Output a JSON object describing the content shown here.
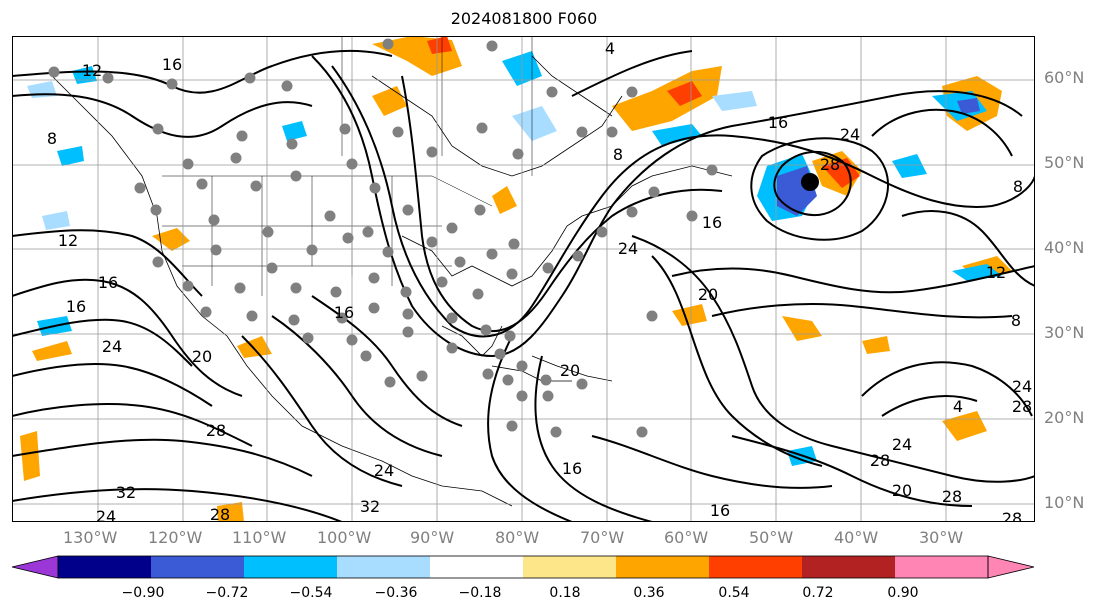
{
  "title": "2024081800 F060",
  "latitude_labels": [
    "60°N",
    "50°N",
    "40°N",
    "30°N",
    "20°N",
    "10°N"
  ],
  "longitude_labels": [
    "130°W",
    "120°W",
    "110°W",
    "100°W",
    "90°W",
    "80°W",
    "70°W",
    "60°W",
    "50°W",
    "40°W",
    "30°W"
  ],
  "contour_labels": [
    "12",
    "16",
    "8",
    "12",
    "16",
    "16",
    "20",
    "24",
    "28",
    "32",
    "24",
    "28",
    "32",
    "16",
    "20",
    "24",
    "16",
    "24",
    "28",
    "24",
    "20",
    "16",
    "12",
    "8",
    "8",
    "28",
    "24",
    "20",
    "28",
    "28",
    "16",
    "8",
    "4",
    "4",
    "24",
    "28",
    "16"
  ],
  "colorbar": {
    "ticks": [
      "−0.90",
      "−0.72",
      "−0.54",
      "−0.36",
      "−0.18",
      "0.18",
      "0.36",
      "0.54",
      "0.72",
      "0.90"
    ],
    "colors": [
      "#9a37d6",
      "#00008b",
      "#3b5bd6",
      "#00bfff",
      "#a8ddff",
      "#ffffff",
      "#fde68a",
      "#ffa500",
      "#ff3f00",
      "#b22222",
      "#ff85b5",
      "#ff85b5"
    ]
  },
  "station_marker_color": "#808080",
  "shading_colors": {
    "orange": "#ffa500",
    "cyan": "#00bfff",
    "light_blue": "#a8ddff",
    "blue": "#3b5bd6",
    "red": "#ff3f00"
  }
}
